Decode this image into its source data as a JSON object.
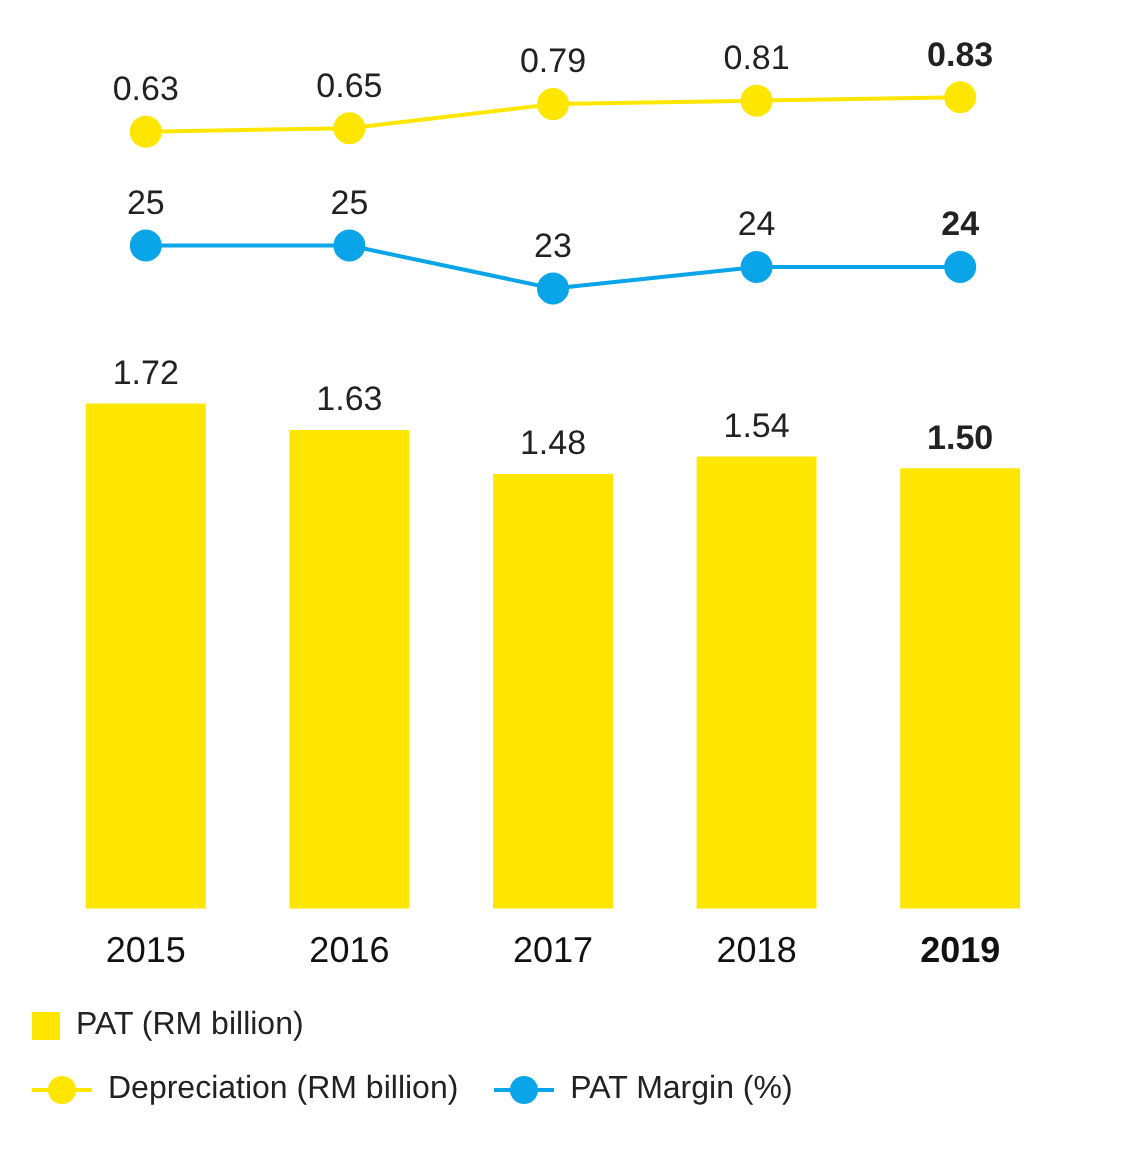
{
  "chart_data": [
    {
      "type": "line",
      "categories": [
        null,
        null,
        null,
        null,
        null
      ],
      "series": [
        {
          "name": "Depreciation (RM billion)",
          "color": "#ffe600",
          "values": [
            0.63,
            0.65,
            0.79,
            0.81,
            0.83
          ],
          "value_labels": [
            "0.63",
            "0.65",
            "0.79",
            "0.81",
            "0.83"
          ]
        }
      ],
      "grid": false,
      "legend": "bottom",
      "marker": "circle",
      "tick_labels": false
    },
    {
      "type": "line",
      "categories": [
        null,
        null,
        null,
        null,
        null
      ],
      "series": [
        {
          "name": "PAT Margin (%)",
          "color": "#0aa5e8",
          "values": [
            25,
            25,
            23,
            24,
            24
          ],
          "value_labels": [
            "25",
            "25",
            "23",
            "24",
            "24"
          ]
        }
      ],
      "grid": false,
      "legend": "bottom",
      "marker": "circle",
      "tick_labels": false
    },
    {
      "type": "bar",
      "categories": [
        "2015",
        "2016",
        "2017",
        "2018",
        "2019"
      ],
      "series": [
        {
          "name": "PAT (RM  billion)",
          "color": "#ffe600",
          "values": [
            1.72,
            1.63,
            1.48,
            1.54,
            1.5
          ],
          "value_labels": [
            "1.72",
            "1.63",
            "1.48",
            "1.54",
            "1.50"
          ]
        }
      ],
      "grid": false,
      "legend": "bottom",
      "tick_labels": "x"
    }
  ]
}
